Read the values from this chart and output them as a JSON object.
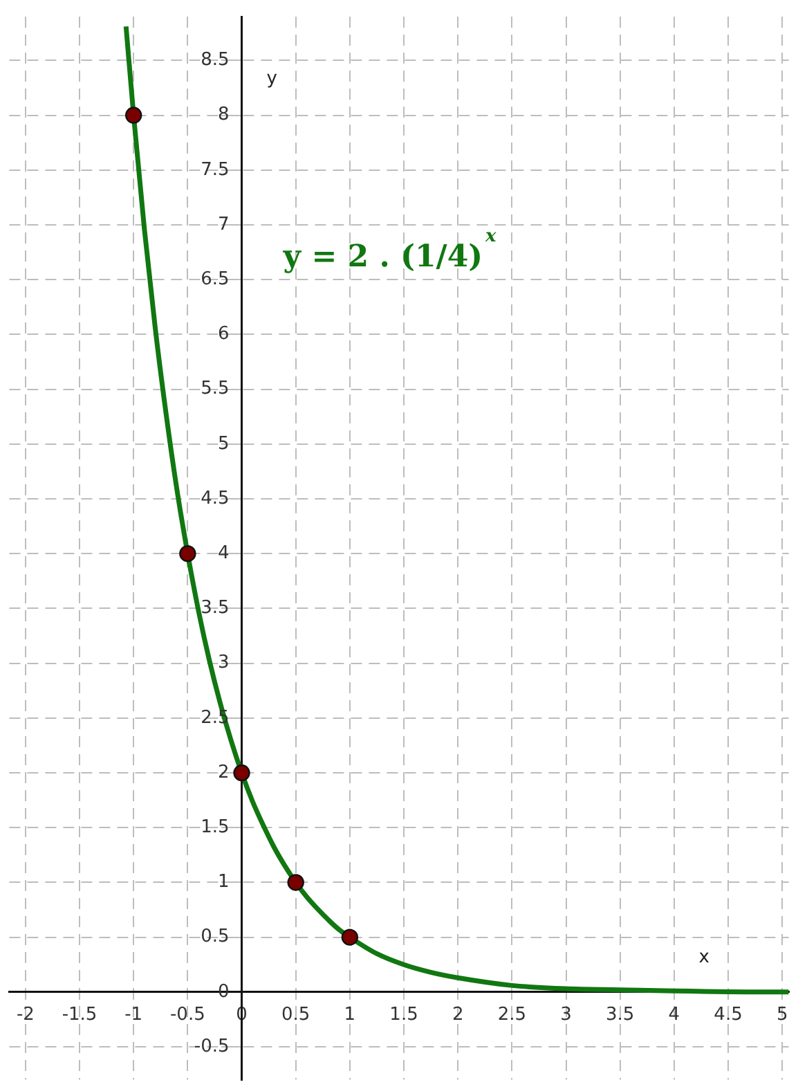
{
  "chart_data": {
    "type": "line",
    "xlabel": "x",
    "ylabel": "y",
    "annotations": [
      "y = 2 . (1/4)$^{x}$"
    ],
    "series": [
      {
        "color": "#117711",
        "marker": "none",
        "x": [
          -1.07,
          -1,
          -0.9,
          -0.8,
          -0.7,
          -0.6,
          -0.5,
          -0.4,
          -0.3,
          -0.2,
          -0.1,
          0,
          0.1,
          0.2,
          0.3,
          0.4,
          0.5,
          0.6,
          0.7,
          0.8,
          0.9,
          1,
          1.25,
          1.5,
          1.75,
          2,
          2.5,
          3,
          3.5,
          4,
          5,
          5.06
        ],
        "values": [
          8.81,
          8,
          6.96,
          6.06,
          5.28,
          4.59,
          4,
          3.48,
          3.03,
          2.64,
          2.3,
          2,
          1.74,
          1.52,
          1.32,
          1.15,
          1,
          0.87,
          0.76,
          0.66,
          0.57,
          0.5,
          0.35,
          0.25,
          0.18,
          0.13,
          0.06,
          0.03,
          0.02,
          0.01,
          0,
          0
        ]
      },
      {
        "type": "scatter",
        "color": "#7a0000",
        "marker": "circle",
        "x": [
          -1,
          -0.5,
          0,
          0.5,
          1
        ],
        "values": [
          8,
          4,
          2,
          1,
          0.5
        ]
      }
    ],
    "xlim": [
      -2.15,
      5.06
    ],
    "ylim": [
      -0.8,
      8.9
    ],
    "xticks": [
      -2,
      -1.5,
      -1,
      -0.5,
      0,
      0.5,
      1,
      1.5,
      2,
      2.5,
      3,
      3.5,
      4,
      4.5,
      5
    ],
    "yticks": [
      -0.5,
      0,
      0.5,
      1,
      1.5,
      2,
      2.5,
      3,
      3.5,
      4,
      4.5,
      5,
      5.5,
      6,
      6.5,
      7,
      7.5,
      8,
      8.5
    ],
    "grid": true,
    "legend": false
  }
}
